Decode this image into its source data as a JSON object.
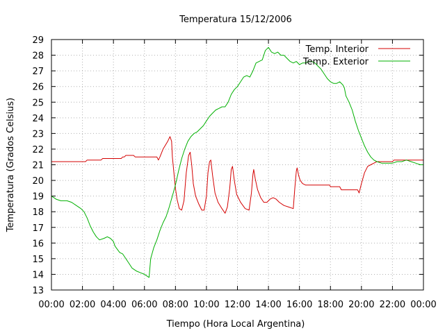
{
  "chart_data": {
    "type": "line",
    "title": "Temperatura 15/12/2006",
    "xlabel": "Tiempo (Hora Local Argentina)",
    "ylabel": "Temperatura (Grados Celsius)",
    "xlim": [
      0,
      24
    ],
    "ylim": [
      13,
      29
    ],
    "x_ticks": [
      0,
      2,
      4,
      6,
      8,
      10,
      12,
      14,
      16,
      18,
      20,
      22,
      24
    ],
    "x_tick_labels": [
      "00:00",
      "02:00",
      "04:00",
      "06:00",
      "08:00",
      "10:00",
      "12:00",
      "14:00",
      "16:00",
      "18:00",
      "20:00",
      "22:00",
      "00:00"
    ],
    "y_ticks": [
      13,
      14,
      15,
      16,
      17,
      18,
      19,
      20,
      21,
      22,
      23,
      24,
      25,
      26,
      27,
      28,
      29
    ],
    "grid": true,
    "legend_position": "top-right",
    "series": [
      {
        "name": "Temp. Interior",
        "color": "#d40000",
        "points": [
          [
            0.0,
            21.2
          ],
          [
            2.2,
            21.2
          ],
          [
            2.3,
            21.3
          ],
          [
            3.2,
            21.3
          ],
          [
            3.3,
            21.4
          ],
          [
            4.5,
            21.4
          ],
          [
            4.6,
            21.5
          ],
          [
            4.7,
            21.5
          ],
          [
            4.8,
            21.6
          ],
          [
            5.3,
            21.6
          ],
          [
            5.4,
            21.5
          ],
          [
            6.8,
            21.5
          ],
          [
            6.9,
            21.3
          ],
          [
            7.0,
            21.5
          ],
          [
            7.2,
            22.0
          ],
          [
            7.5,
            22.5
          ],
          [
            7.65,
            22.8
          ],
          [
            7.75,
            22.5
          ],
          [
            7.8,
            21.5
          ],
          [
            7.9,
            20.5
          ],
          [
            8.0,
            19.5
          ],
          [
            8.1,
            18.8
          ],
          [
            8.25,
            18.2
          ],
          [
            8.4,
            18.1
          ],
          [
            8.55,
            18.7
          ],
          [
            8.7,
            20.5
          ],
          [
            8.85,
            21.6
          ],
          [
            8.95,
            21.8
          ],
          [
            9.05,
            21.0
          ],
          [
            9.15,
            19.8
          ],
          [
            9.3,
            19.0
          ],
          [
            9.5,
            18.5
          ],
          [
            9.7,
            18.1
          ],
          [
            9.85,
            18.1
          ],
          [
            10.0,
            19.0
          ],
          [
            10.1,
            20.5
          ],
          [
            10.2,
            21.2
          ],
          [
            10.28,
            21.3
          ],
          [
            10.4,
            20.3
          ],
          [
            10.55,
            19.2
          ],
          [
            10.75,
            18.6
          ],
          [
            11.0,
            18.2
          ],
          [
            11.2,
            17.9
          ],
          [
            11.35,
            18.3
          ],
          [
            11.5,
            19.5
          ],
          [
            11.6,
            20.7
          ],
          [
            11.68,
            20.9
          ],
          [
            11.8,
            20.0
          ],
          [
            11.95,
            19.1
          ],
          [
            12.2,
            18.6
          ],
          [
            12.5,
            18.2
          ],
          [
            12.75,
            18.1
          ],
          [
            12.9,
            19.2
          ],
          [
            13.0,
            20.4
          ],
          [
            13.05,
            20.7
          ],
          [
            13.15,
            20.1
          ],
          [
            13.3,
            19.4
          ],
          [
            13.5,
            18.9
          ],
          [
            13.7,
            18.6
          ],
          [
            13.9,
            18.6
          ],
          [
            14.1,
            18.8
          ],
          [
            14.3,
            18.9
          ],
          [
            14.5,
            18.8
          ],
          [
            14.7,
            18.6
          ],
          [
            15.0,
            18.4
          ],
          [
            15.3,
            18.3
          ],
          [
            15.6,
            18.2
          ],
          [
            15.7,
            19.5
          ],
          [
            15.8,
            20.6
          ],
          [
            15.85,
            20.8
          ],
          [
            15.95,
            20.3
          ],
          [
            16.05,
            20.0
          ],
          [
            16.2,
            19.8
          ],
          [
            16.4,
            19.7
          ],
          [
            17.0,
            19.7
          ],
          [
            17.5,
            19.7
          ],
          [
            17.95,
            19.7
          ],
          [
            18.0,
            19.6
          ],
          [
            18.6,
            19.6
          ],
          [
            18.7,
            19.4
          ],
          [
            19.5,
            19.4
          ],
          [
            19.75,
            19.4
          ],
          [
            19.85,
            19.2
          ],
          [
            20.0,
            19.8
          ],
          [
            20.2,
            20.5
          ],
          [
            20.4,
            20.9
          ],
          [
            20.6,
            21.0
          ],
          [
            20.8,
            21.1
          ],
          [
            21.0,
            21.2
          ],
          [
            21.5,
            21.2
          ],
          [
            22.0,
            21.2
          ],
          [
            22.1,
            21.3
          ],
          [
            23.0,
            21.3
          ],
          [
            24.0,
            21.3
          ]
        ]
      },
      {
        "name": "Temp. Exterior",
        "color": "#00b000",
        "points": [
          [
            0.0,
            19.0
          ],
          [
            0.3,
            18.8
          ],
          [
            0.6,
            18.7
          ],
          [
            1.0,
            18.7
          ],
          [
            1.3,
            18.6
          ],
          [
            1.6,
            18.4
          ],
          [
            1.9,
            18.2
          ],
          [
            2.1,
            18.0
          ],
          [
            2.3,
            17.6
          ],
          [
            2.5,
            17.1
          ],
          [
            2.7,
            16.7
          ],
          [
            2.9,
            16.4
          ],
          [
            3.1,
            16.2
          ],
          [
            3.4,
            16.3
          ],
          [
            3.6,
            16.4
          ],
          [
            3.8,
            16.3
          ],
          [
            4.0,
            16.1
          ],
          [
            4.1,
            15.8
          ],
          [
            4.25,
            15.6
          ],
          [
            4.4,
            15.4
          ],
          [
            4.6,
            15.3
          ],
          [
            4.8,
            15.0
          ],
          [
            5.0,
            14.7
          ],
          [
            5.2,
            14.4
          ],
          [
            5.5,
            14.2
          ],
          [
            5.75,
            14.1
          ],
          [
            6.0,
            14.0
          ],
          [
            6.3,
            13.8
          ],
          [
            6.4,
            15.0
          ],
          [
            6.6,
            15.7
          ],
          [
            6.8,
            16.2
          ],
          [
            7.0,
            16.8
          ],
          [
            7.2,
            17.3
          ],
          [
            7.4,
            17.7
          ],
          [
            7.6,
            18.3
          ],
          [
            7.8,
            19.0
          ],
          [
            8.0,
            19.7
          ],
          [
            8.2,
            20.6
          ],
          [
            8.4,
            21.4
          ],
          [
            8.6,
            22.0
          ],
          [
            8.8,
            22.5
          ],
          [
            9.0,
            22.8
          ],
          [
            9.2,
            23.0
          ],
          [
            9.4,
            23.1
          ],
          [
            9.6,
            23.3
          ],
          [
            9.8,
            23.5
          ],
          [
            10.0,
            23.8
          ],
          [
            10.2,
            24.1
          ],
          [
            10.4,
            24.3
          ],
          [
            10.6,
            24.5
          ],
          [
            10.8,
            24.6
          ],
          [
            11.0,
            24.7
          ],
          [
            11.2,
            24.7
          ],
          [
            11.4,
            25.0
          ],
          [
            11.6,
            25.5
          ],
          [
            11.8,
            25.8
          ],
          [
            12.0,
            26.0
          ],
          [
            12.2,
            26.3
          ],
          [
            12.4,
            26.6
          ],
          [
            12.6,
            26.7
          ],
          [
            12.8,
            26.6
          ],
          [
            13.0,
            27.0
          ],
          [
            13.2,
            27.5
          ],
          [
            13.4,
            27.6
          ],
          [
            13.6,
            27.7
          ],
          [
            13.8,
            28.3
          ],
          [
            14.0,
            28.5
          ],
          [
            14.2,
            28.2
          ],
          [
            14.4,
            28.1
          ],
          [
            14.6,
            28.2
          ],
          [
            14.8,
            28.0
          ],
          [
            15.0,
            28.0
          ],
          [
            15.2,
            27.8
          ],
          [
            15.4,
            27.6
          ],
          [
            15.6,
            27.5
          ],
          [
            15.8,
            27.6
          ],
          [
            16.0,
            27.4
          ],
          [
            16.2,
            27.5
          ],
          [
            16.4,
            27.5
          ],
          [
            16.6,
            27.6
          ],
          [
            16.8,
            27.6
          ],
          [
            17.0,
            27.5
          ],
          [
            17.2,
            27.3
          ],
          [
            17.4,
            27.1
          ],
          [
            17.6,
            26.8
          ],
          [
            17.8,
            26.5
          ],
          [
            18.0,
            26.3
          ],
          [
            18.2,
            26.2
          ],
          [
            18.4,
            26.2
          ],
          [
            18.6,
            26.3
          ],
          [
            18.8,
            26.1
          ],
          [
            18.9,
            25.9
          ],
          [
            19.0,
            25.4
          ],
          [
            19.2,
            25.0
          ],
          [
            19.4,
            24.5
          ],
          [
            19.6,
            23.8
          ],
          [
            19.8,
            23.2
          ],
          [
            20.0,
            22.7
          ],
          [
            20.2,
            22.2
          ],
          [
            20.4,
            21.8
          ],
          [
            20.6,
            21.5
          ],
          [
            20.8,
            21.3
          ],
          [
            21.0,
            21.2
          ],
          [
            21.3,
            21.1
          ],
          [
            21.6,
            21.1
          ],
          [
            22.0,
            21.1
          ],
          [
            22.3,
            21.2
          ],
          [
            22.6,
            21.2
          ],
          [
            22.9,
            21.3
          ],
          [
            23.2,
            21.2
          ],
          [
            23.5,
            21.1
          ],
          [
            23.8,
            21.0
          ],
          [
            24.0,
            21.0
          ]
        ]
      }
    ]
  }
}
